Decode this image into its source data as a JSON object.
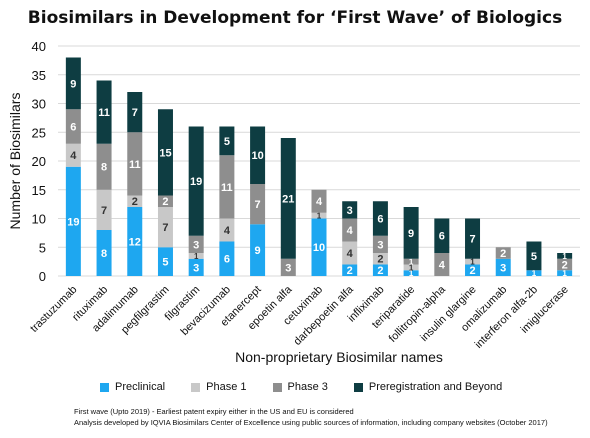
{
  "chart_data": {
    "type": "bar",
    "stacked": true,
    "title": "Biosimilars in Development for ‘First Wave’ of Biologics",
    "xlabel": "Non-proprietary Biosimilar names",
    "ylabel": "Number of Biosimilars",
    "ylim": [
      0,
      40
    ],
    "yticks": [
      0,
      5,
      10,
      15,
      20,
      25,
      30,
      35,
      40
    ],
    "grid": true,
    "legend_position": "bottom",
    "categories": [
      "trastuzumab",
      "rituximab",
      "adalimumab",
      "pegfilgrastim",
      "filgrastim",
      "bevacizumab",
      "etanercept",
      "epoetin alfa",
      "cetuximab",
      "darbepoetin alfa",
      "infliximab",
      "teriparatide",
      "follitropin-alpha",
      "insulin glargine",
      "omalizumab",
      "interferon alfa-2b",
      "imiglucerase"
    ],
    "series": [
      {
        "name": "Preclinical",
        "color": "#1ea7f0",
        "values": [
          19,
          8,
          12,
          5,
          3,
          6,
          9,
          0,
          10,
          2,
          2,
          1,
          0,
          2,
          3,
          1,
          1
        ]
      },
      {
        "name": "Phase 1",
        "color": "#c8c8c8",
        "values": [
          4,
          7,
          2,
          7,
          1,
          4,
          0,
          0,
          1,
          4,
          2,
          1,
          0,
          1,
          0,
          0,
          0
        ]
      },
      {
        "name": "Phase 3",
        "color": "#8e8e8e",
        "values": [
          6,
          8,
          11,
          2,
          3,
          11,
          7,
          3,
          4,
          4,
          3,
          1,
          4,
          0,
          2,
          0,
          2
        ]
      },
      {
        "name": "Preregistration and Beyond",
        "color": "#0e3d42",
        "values": [
          9,
          11,
          7,
          15,
          19,
          5,
          10,
          21,
          0,
          3,
          6,
          9,
          6,
          7,
          0,
          5,
          1
        ]
      }
    ],
    "data_labels": [
      [
        "19",
        "8",
        "12",
        "5",
        "3",
        "6",
        "9",
        "",
        "10",
        "2",
        "2",
        "1",
        "",
        "2",
        "3",
        "1",
        "1"
      ],
      [
        "4",
        "7",
        "2",
        "7",
        "1",
        "4",
        "",
        "",
        "1",
        "4",
        "2",
        "1",
        "",
        "1",
        "",
        "",
        ""
      ],
      [
        "6",
        "8",
        "11",
        "2",
        "3",
        "11",
        "7",
        "3",
        "4",
        "4",
        "3",
        "1",
        "4",
        "",
        "2",
        "",
        "2"
      ],
      [
        "9",
        "11",
        "7",
        "15",
        "19",
        "5",
        "10",
        "21",
        "",
        "3",
        "6",
        "9",
        "6",
        "7",
        "",
        "5",
        "1"
      ]
    ]
  },
  "footnotes": [
    "First wave (Upto 2019) - Earliest patent expiry either in the US and EU is considered",
    "Analysis developed by IQVIA Biosimilars Center of Excellence using public sources of information, including company websites (October 2017)"
  ]
}
